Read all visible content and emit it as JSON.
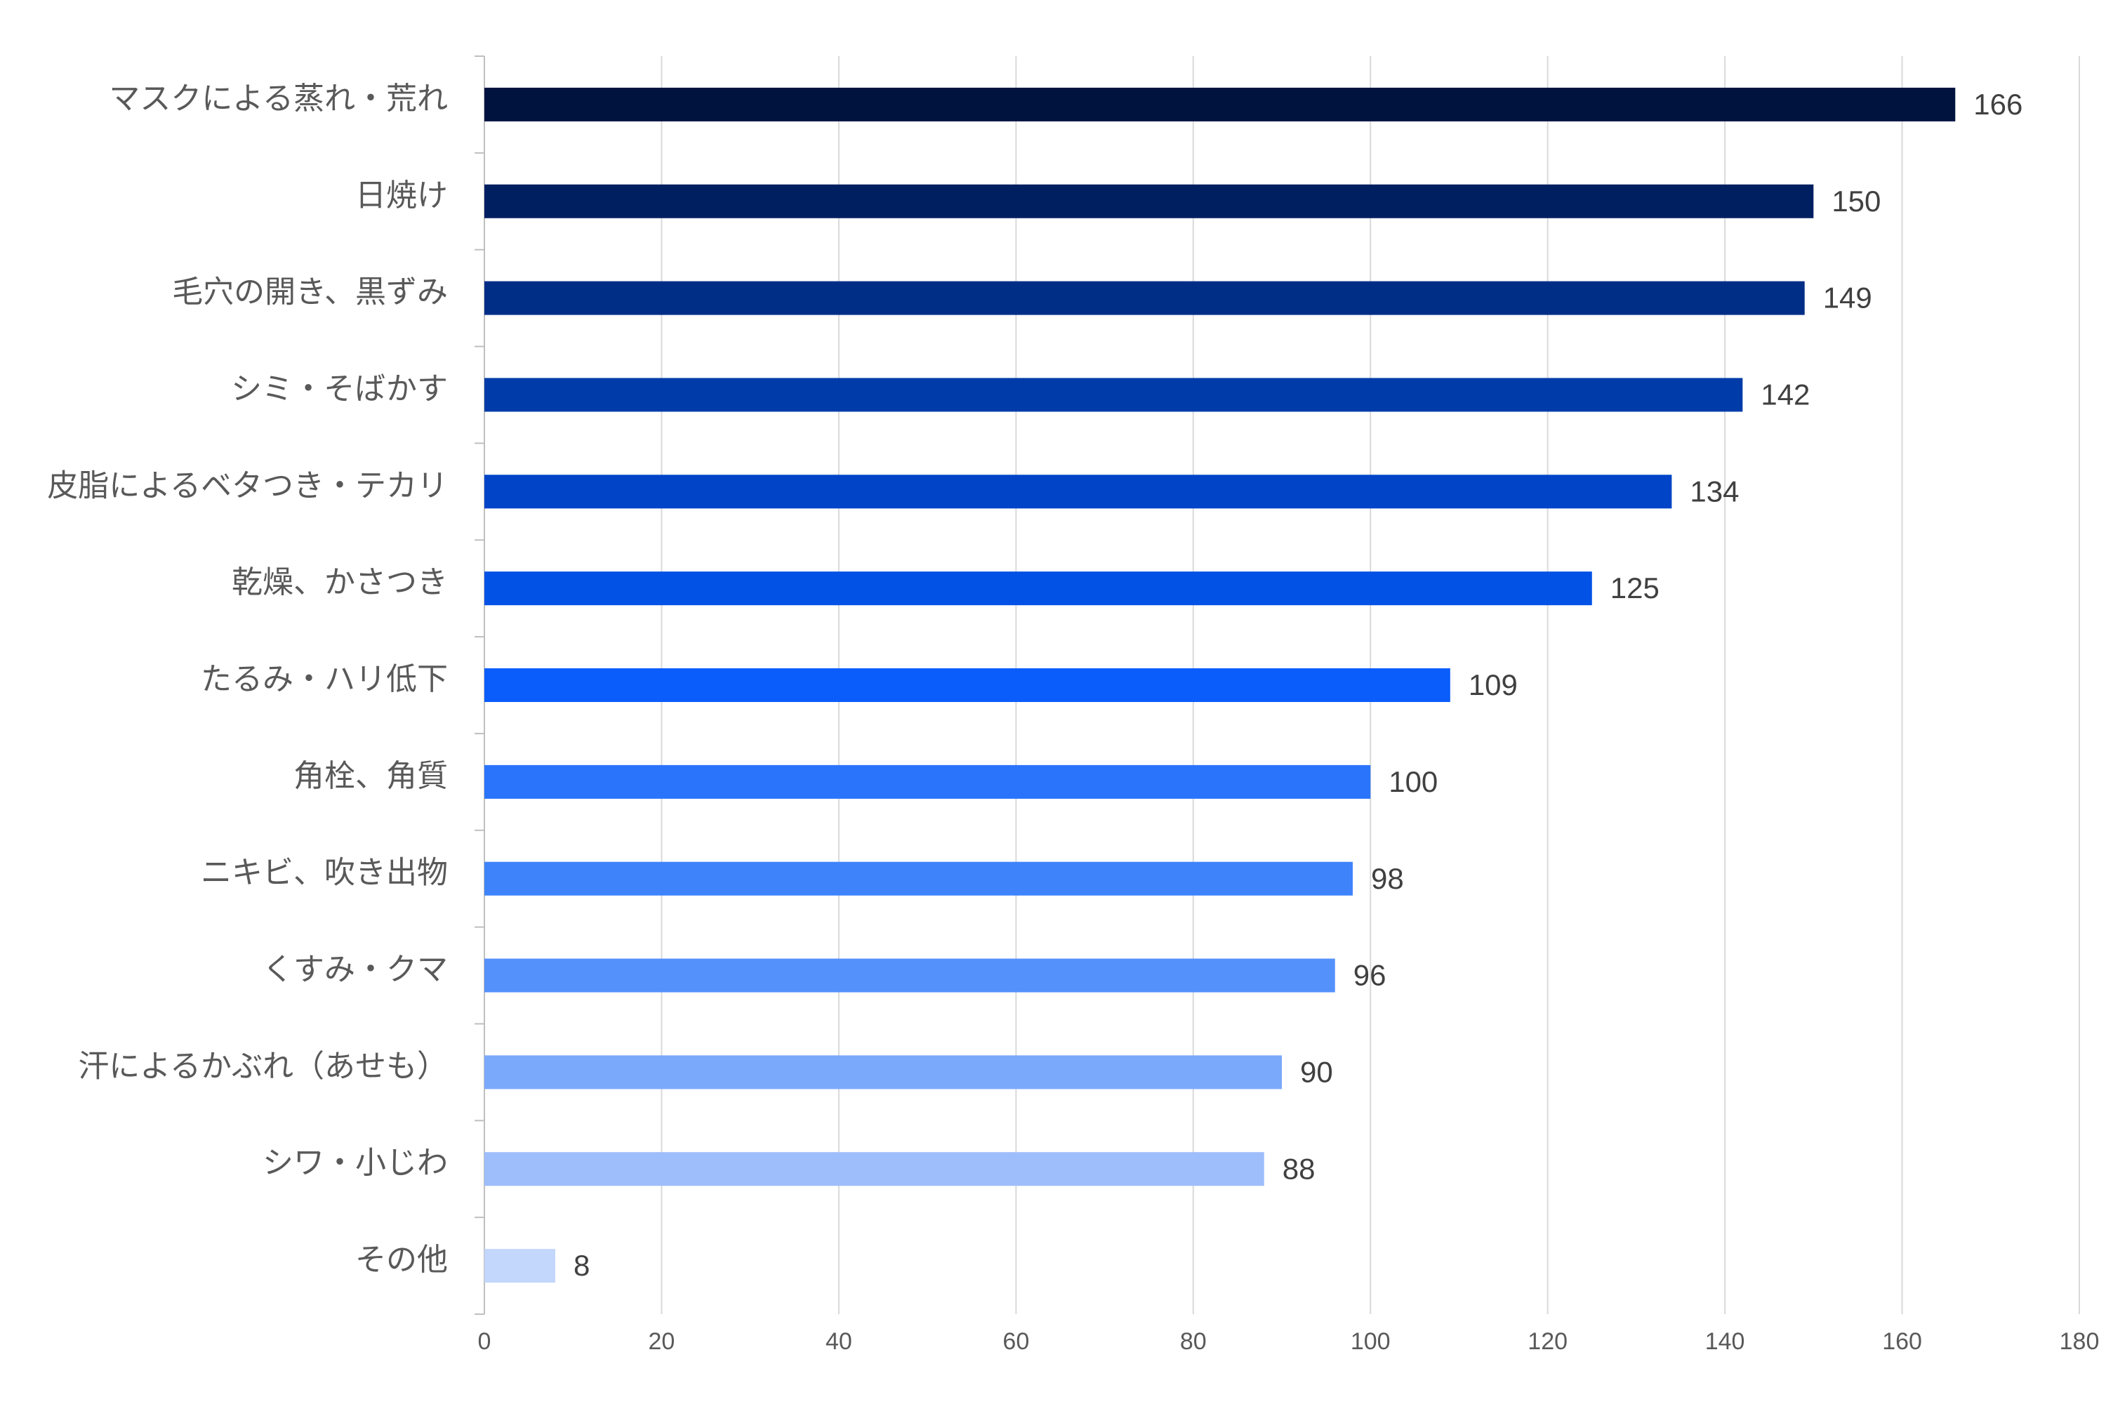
{
  "chart_data": {
    "type": "bar",
    "orientation": "horizontal",
    "title": "",
    "xlabel": "",
    "ylabel": "",
    "xlim": [
      0,
      180
    ],
    "x_ticks": [
      0,
      20,
      40,
      60,
      80,
      100,
      120,
      140,
      160,
      180
    ],
    "grid": true,
    "legend": "none",
    "categories": [
      "マスクによる蒸れ・荒れ",
      "日焼け",
      "毛穴の開き、黒ずみ",
      "シミ・そばかす",
      "皮脂によるベタつき・テカリ",
      "乾燥、かさつき",
      "たるみ・ハリ低下",
      "角栓、角質",
      "ニキビ、吹き出物",
      "くすみ・クマ",
      "汗によるかぶれ（あせも）",
      "シワ・小じわ",
      "その他"
    ],
    "values": [
      166,
      150,
      149,
      142,
      134,
      125,
      109,
      100,
      98,
      96,
      90,
      88,
      8
    ],
    "colors": [
      "#00133f",
      "#001f61",
      "#002e87",
      "#003ca9",
      "#0144c8",
      "#0352e6",
      "#0a5dfb",
      "#2a74fb",
      "#3f83fb",
      "#5591fb",
      "#7aa8fb",
      "#9ebdfb",
      "#c3d6fb"
    ]
  }
}
